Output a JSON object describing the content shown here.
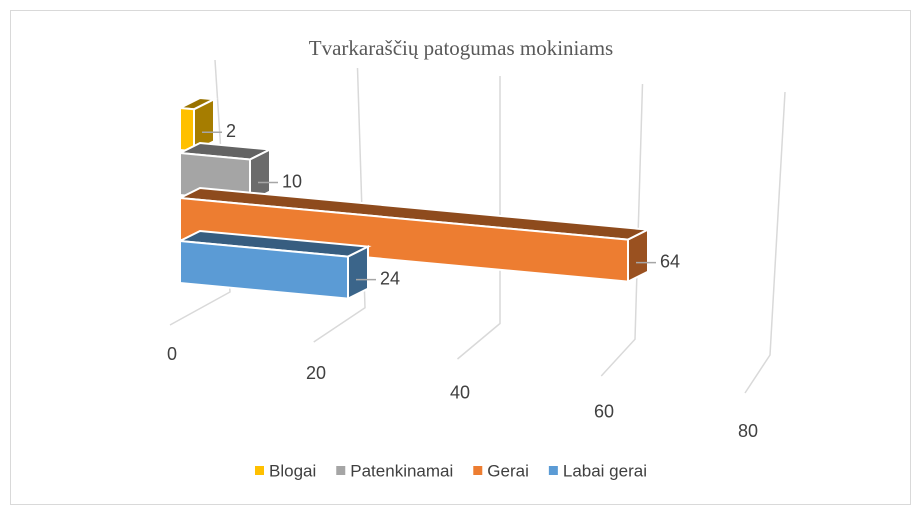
{
  "chart_data": {
    "type": "bar3d",
    "orientation": "horizontal",
    "title": "Tvarkaraščių patogumas mokiniams",
    "series": [
      {
        "name": "Blogai",
        "color": "#ffc000",
        "values": [
          2
        ]
      },
      {
        "name": "Patenkinamai",
        "color": "#a5a5a5",
        "values": [
          10
        ]
      },
      {
        "name": "Gerai",
        "color": "#ed7d31",
        "values": [
          64
        ]
      },
      {
        "name": "Labai gerai",
        "color": "#5b9bd5",
        "values": [
          24
        ]
      }
    ],
    "xlim": [
      0,
      80
    ],
    "xticks": [
      0,
      20,
      40,
      60,
      80
    ],
    "grid": true,
    "legend": "bottom"
  }
}
